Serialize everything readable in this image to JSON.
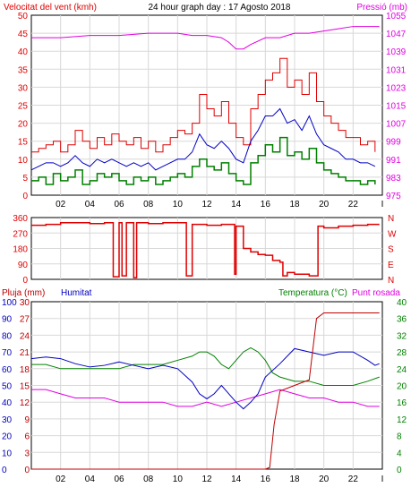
{
  "colors": {
    "wind_max": "#e00000",
    "wind_avg": "#0000c8",
    "wind_min": "#008000",
    "pressure": "#e000e0",
    "direction": "#e00000",
    "rain": "#c00000",
    "humidity": "#0000c0",
    "temperature": "#008000",
    "dewpoint": "#e000e0",
    "grid": "#d8d8d8"
  },
  "chart_data": [
    {
      "type": "line",
      "title": "24 hour graph day : 17 Agosto 2018",
      "ylabel": "Velocitat del vent (kmh)",
      "y2label": "Pressió (mb)",
      "xticks": [
        "02",
        "04",
        "06",
        "08",
        "10",
        "12",
        "14",
        "16",
        "18",
        "20",
        "22",
        "I"
      ],
      "yticks": [
        "0",
        "5",
        "10",
        "15",
        "20",
        "25",
        "30",
        "35",
        "40",
        "45",
        "50"
      ],
      "y2ticks": [
        "975",
        "983",
        "991",
        "999",
        "1007",
        "1015",
        "1023",
        "1031",
        "1039",
        "1047",
        "1055"
      ],
      "ylim": [
        0,
        50
      ],
      "y2lim": [
        975,
        1055
      ],
      "xlim": [
        0,
        24
      ],
      "grid": true,
      "series": [
        {
          "name": "wind_max",
          "x": [
            0,
            0.5,
            1,
            1.5,
            2,
            2.5,
            3,
            3.5,
            4,
            4.5,
            5,
            5.5,
            6,
            6.5,
            7,
            7.5,
            8,
            8.5,
            9,
            9.5,
            10,
            10.5,
            11,
            11.5,
            12,
            12.5,
            13,
            13.5,
            14,
            14.5,
            15,
            15.5,
            16,
            16.5,
            17,
            17.5,
            18,
            18.5,
            19,
            19.5,
            20,
            20.5,
            21,
            21.5,
            22,
            22.5,
            23,
            23.5
          ],
          "y": [
            12,
            13,
            14,
            15,
            12,
            14,
            18,
            15,
            13,
            16,
            14,
            17,
            15,
            14,
            16,
            13,
            15,
            12,
            14,
            16,
            18,
            17,
            20,
            28,
            24,
            22,
            26,
            20,
            16,
            14,
            24,
            28,
            32,
            34,
            38,
            30,
            32,
            28,
            34,
            26,
            22,
            20,
            18,
            16,
            16,
            14,
            15,
            12
          ]
        },
        {
          "name": "wind_avg",
          "x": [
            0,
            0.5,
            1,
            1.5,
            2,
            2.5,
            3,
            3.5,
            4,
            4.5,
            5,
            5.5,
            6,
            6.5,
            7,
            7.5,
            8,
            8.5,
            9,
            9.5,
            10,
            10.5,
            11,
            11.5,
            12,
            12.5,
            13,
            13.5,
            14,
            14.5,
            15,
            15.5,
            16,
            16.5,
            17,
            17.5,
            18,
            18.5,
            19,
            19.5,
            20,
            20.5,
            21,
            21.5,
            22,
            22.5,
            23,
            23.5
          ],
          "y": [
            7,
            8,
            9,
            9,
            8,
            9,
            11,
            9,
            8,
            10,
            9,
            10,
            9,
            8,
            9,
            8,
            9,
            7,
            8,
            9,
            10,
            10,
            12,
            17,
            14,
            13,
            15,
            13,
            10,
            9,
            15,
            18,
            22,
            22,
            24,
            20,
            21,
            18,
            22,
            17,
            14,
            13,
            12,
            10,
            10,
            9,
            9,
            8
          ]
        },
        {
          "name": "wind_min",
          "x": [
            0,
            0.5,
            1,
            1.5,
            2,
            2.5,
            3,
            3.5,
            4,
            4.5,
            5,
            5.5,
            6,
            6.5,
            7,
            7.5,
            8,
            8.5,
            9,
            9.5,
            10,
            10.5,
            11,
            11.5,
            12,
            12.5,
            13,
            13.5,
            14,
            14.5,
            15,
            15.5,
            16,
            16.5,
            17,
            17.5,
            18,
            18.5,
            19,
            19.5,
            20,
            20.5,
            21,
            21.5,
            22,
            22.5,
            23,
            23.5
          ],
          "y": [
            4,
            5,
            3,
            6,
            4,
            5,
            7,
            3,
            4,
            6,
            5,
            6,
            4,
            3,
            5,
            4,
            5,
            3,
            4,
            5,
            6,
            5,
            8,
            10,
            8,
            7,
            9,
            6,
            4,
            3,
            9,
            11,
            14,
            12,
            16,
            11,
            12,
            10,
            13,
            9,
            7,
            6,
            5,
            4,
            4,
            3,
            4,
            3
          ]
        },
        {
          "name": "pressure",
          "x": [
            0,
            2,
            4,
            6,
            8,
            10,
            11,
            12,
            13,
            13.5,
            14,
            14.5,
            15,
            16,
            17,
            18,
            19,
            20,
            21,
            22,
            23,
            23.8
          ],
          "y": [
            1045,
            1045,
            1046,
            1046,
            1047,
            1047,
            1046,
            1046,
            1045,
            1043,
            1040,
            1040,
            1042,
            1045,
            1045,
            1047,
            1047,
            1048,
            1049,
            1050,
            1050,
            1050
          ]
        }
      ]
    },
    {
      "type": "line",
      "ylabel_ticks": [
        "360",
        "270",
        "180",
        "90",
        "0"
      ],
      "dir_labels": [
        "N",
        "W",
        "S",
        "E",
        "N"
      ],
      "ylim": [
        0,
        360
      ],
      "xlim": [
        0,
        24
      ],
      "series": [
        {
          "name": "direction",
          "x": [
            0,
            1,
            2,
            3,
            4,
            5,
            5.5,
            5.6,
            6,
            6.2,
            6.5,
            7,
            7.2,
            7.5,
            8,
            9,
            10,
            10.5,
            10.6,
            11,
            12,
            13,
            13.8,
            13.9,
            14,
            14.5,
            15,
            15.5,
            16,
            16.5,
            17,
            17.2,
            17.5,
            18,
            19,
            19.5,
            19.6,
            20,
            21,
            22,
            23,
            23.8
          ],
          "y": [
            315,
            320,
            330,
            330,
            325,
            330,
            330,
            15,
            330,
            20,
            330,
            10,
            330,
            330,
            325,
            330,
            330,
            330,
            20,
            320,
            315,
            320,
            320,
            30,
            310,
            180,
            160,
            145,
            140,
            110,
            100,
            20,
            40,
            30,
            20,
            20,
            310,
            300,
            310,
            315,
            320,
            320
          ]
        }
      ]
    },
    {
      "type": "line",
      "ylabel": "Pluja (mm)",
      "humidity_label": "Humitat",
      "y2label": "Temperatura (°C)",
      "y3label": "Punt rosada",
      "rain_ticks": [
        "0",
        "3",
        "6",
        "9",
        "12",
        "15",
        "18",
        "21",
        "24",
        "27",
        "30"
      ],
      "hum_ticks": [
        "0",
        "10",
        "20",
        "30",
        "40",
        "50",
        "60",
        "70",
        "80",
        "90",
        "100"
      ],
      "temp_ticks": [
        "0",
        "4",
        "8",
        "12",
        "16",
        "20",
        "24",
        "28",
        "32",
        "36",
        "40"
      ],
      "xticks": [
        "02",
        "04",
        "06",
        "08",
        "10",
        "12",
        "14",
        "16",
        "18",
        "20",
        "22",
        "I"
      ],
      "ylim": [
        0,
        30
      ],
      "xlim": [
        0,
        24
      ],
      "series": [
        {
          "name": "rain_mm",
          "x": [
            0,
            16,
            16.3,
            16.6,
            17,
            18,
            19,
            19.5,
            20,
            21,
            22,
            23,
            23.8
          ],
          "y": [
            0,
            0,
            0.3,
            8,
            14,
            15,
            16,
            27,
            28,
            28,
            28,
            28,
            28
          ]
        },
        {
          "name": "humidity_pct",
          "x": [
            0,
            1,
            2,
            3,
            4,
            5,
            6,
            7,
            8,
            9,
            10,
            11,
            11.5,
            12,
            12.5,
            13,
            14,
            14.5,
            15,
            15.5,
            16,
            17,
            18,
            19,
            20,
            21,
            22,
            23,
            23.5,
            23.8
          ],
          "y": [
            66,
            67,
            66,
            63,
            61,
            62,
            64,
            62,
            60,
            62,
            60,
            52,
            45,
            42,
            45,
            50,
            40,
            36,
            40,
            45,
            55,
            63,
            72,
            70,
            68,
            70,
            70,
            65,
            62,
            63
          ]
        },
        {
          "name": "temperature_c",
          "x": [
            0,
            1,
            2,
            3,
            4,
            5,
            6,
            7,
            8,
            9,
            10,
            11,
            11.5,
            12,
            12.5,
            13,
            13.5,
            14,
            14.5,
            15,
            15.5,
            16,
            16.5,
            17,
            18,
            19,
            20,
            21,
            22,
            23,
            23.8
          ],
          "y": [
            25,
            25,
            24,
            24,
            24,
            24,
            24,
            25,
            25,
            25,
            26,
            27,
            28,
            28,
            27,
            25,
            24,
            26,
            28,
            29,
            28,
            26,
            23,
            22,
            21,
            21,
            20,
            20,
            20,
            21,
            22
          ]
        },
        {
          "name": "dewpoint_c",
          "x": [
            0,
            1,
            2,
            3,
            4,
            5,
            6,
            7,
            8,
            9,
            10,
            11,
            12,
            13,
            14,
            15,
            16,
            17,
            18,
            19,
            20,
            21,
            22,
            23,
            23.8
          ],
          "y": [
            19,
            19,
            18,
            17,
            17,
            17,
            16,
            16,
            16,
            16,
            15,
            15,
            16,
            15,
            16,
            17,
            18,
            19,
            18,
            17,
            17,
            16,
            16,
            15,
            15
          ]
        }
      ]
    }
  ]
}
